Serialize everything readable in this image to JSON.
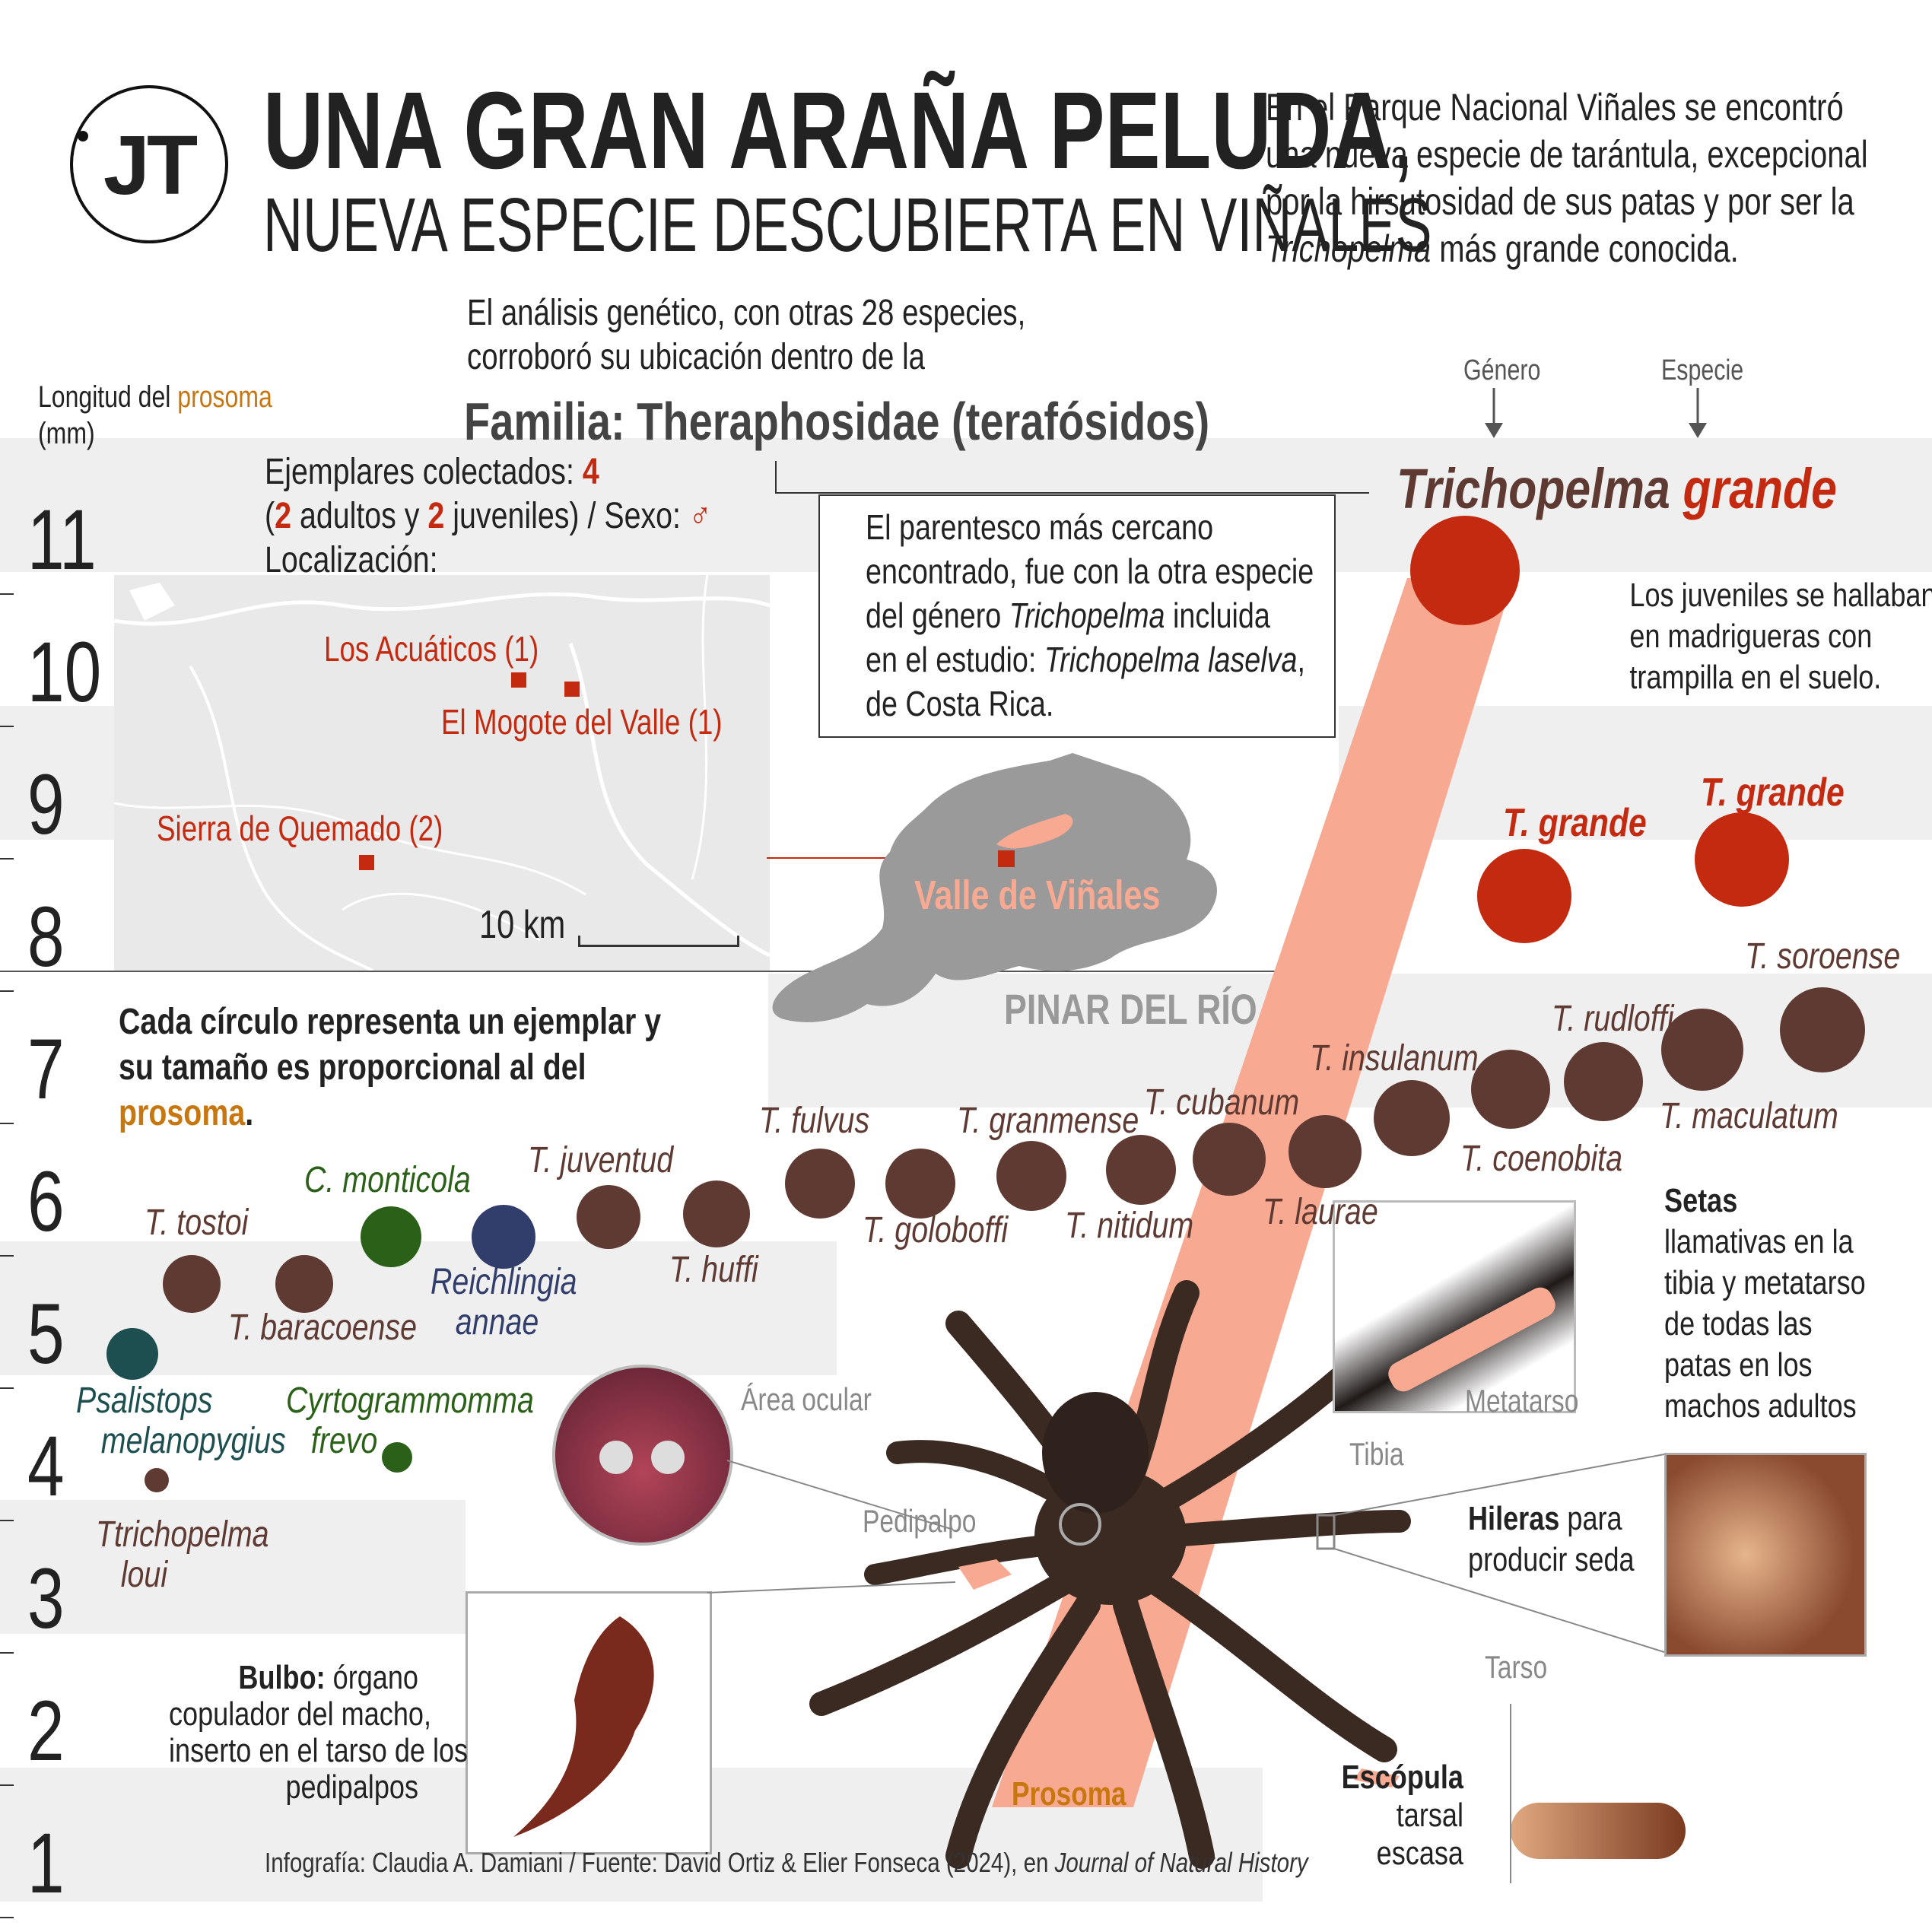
{
  "header": {
    "logo": "JT",
    "title_line1": "UNA GRAN ARAÑA PELUDA",
    "title_comma": ",",
    "title_line2": "NUEVA ESPECIE DESCUBIERTA EN VIÑALES",
    "intro_line1": "En el Parque Nacional Viñales se encontró",
    "intro_line2": "una nueva especie de tarántula, excepcional",
    "intro_line3": "por la hirsutosidad de sus patas y por ser la",
    "intro_line4_italic": "Trichopelma",
    "intro_line4_rest": " más grande conocida."
  },
  "genetic": {
    "line1": "El análisis genético, con otras 28 especies,",
    "line2": "corroboró su ubicación dentro de la",
    "family": "Familia: Theraphosidae (terafósidos)",
    "genero": "Género",
    "especie": "Especie",
    "new_genus": "Trichopelma",
    "new_species": "grande"
  },
  "kinship": {
    "line1": "El parentesco más cercano",
    "line2": "encontrado, fue con la otra especie",
    "line3a": "del género ",
    "line3b": "Trichopelma",
    "line3c": " incluida",
    "line4a": "en el estudio: ",
    "line4b": "Trichopelma laselva",
    "line4c": ",",
    "line5": "de Costa Rica."
  },
  "specimens": {
    "line1a": "Ejemplares colectados: ",
    "count": "4",
    "line2a": "(",
    "adults": "2",
    "line2b": " adultos y ",
    "juveniles": "2",
    "line2c": " juveniles) / Sexo: ",
    "sex_symbol": "♂",
    "line3": "Localización:"
  },
  "map": {
    "loc1": "Los Acuáticos (1)",
    "loc2": "El Mogote del Valle (1)",
    "loc3": "Sierra de Quemado (2)",
    "scale": "10 km",
    "valle": "Valle de Viñales",
    "province": "PINAR DEL RÍO"
  },
  "juveniles_note": {
    "line1": "Los juveniles se hallaban",
    "line2": "en madrigueras con",
    "line3": "trampilla en el suelo."
  },
  "legend_note": {
    "line1": "Cada círculo representa un ejemplar y",
    "line2": "su tamaño es proporcional al del",
    "line3": "prosoma",
    "line3_end": "."
  },
  "axis": {
    "title_a": "Longitud del ",
    "title_b": "prosoma",
    "unit": "(mm)"
  },
  "anatomy": {
    "area_ocular": "Área ocular",
    "pedipalpo": "Pedipalpo",
    "tibia": "Tibia",
    "metatarso": "Metatarso",
    "tarso": "Tarso",
    "prosoma": "Prosoma",
    "setas_title": "Setas",
    "setas_1": "llamativas en la",
    "setas_2": "tibia y metatarso",
    "setas_3": "de todas las",
    "setas_4": "patas en los",
    "setas_5": "machos adultos",
    "hileras_b": "Hileras",
    "hileras_1": " para",
    "hileras_2": "producir seda",
    "bulbo_b": "Bulbo:",
    "bulbo_1": " órgano",
    "bulbo_2": "copulador del macho,",
    "bulbo_3": "inserto en el tarso de los",
    "bulbo_4": "pedipalpos",
    "escopula_b": "Escópula",
    "escopula_1": "tarsal",
    "escopula_2": "escasa"
  },
  "credit": {
    "text": "Infografía: Claudia A. Damiani / Fuente: David Ortiz & Elier Fonseca (2024), en ",
    "journal": "Journal of Natural History"
  },
  "colors": {
    "accent_red": "#c42a10",
    "trichopelma_brown": "#5e3a33",
    "cyrtogrammomma_green": "#2b6018",
    "reichlingia_blue": "#313d6b",
    "psalistops_teal": "#1e4f50",
    "prosoma_orange": "#c8770f",
    "band_salmon": "#f8a992"
  },
  "chart_data": {
    "type": "scatter",
    "title": "",
    "xlabel": "",
    "ylabel": "Longitud del prosoma (mm)",
    "ylim": [
      1,
      11
    ],
    "yticks": [
      1,
      2,
      3,
      4,
      5,
      6,
      7,
      8,
      9,
      10,
      11
    ],
    "size_encoding": "prosoma",
    "points": [
      {
        "label": "Ttrichopelma loui",
        "y": 4.2,
        "color": "#5e3a33"
      },
      {
        "label": "Psalistops melanopygius",
        "y": 4.9,
        "color": "#1e4f50"
      },
      {
        "label": "T. tostoi",
        "y": 5.6,
        "color": "#5e3a33"
      },
      {
        "label": "T. baracoense",
        "y": 5.6,
        "color": "#5e3a33"
      },
      {
        "label": "Cyrtogrammomma frevo",
        "y": 4.3,
        "color": "#2b6018"
      },
      {
        "label": "C. monticola",
        "y": 5.9,
        "color": "#2b6018"
      },
      {
        "label": "Reichlingia annae",
        "y": 5.9,
        "color": "#313d6b"
      },
      {
        "label": "T. juventud",
        "y": 6.0,
        "color": "#5e3a33"
      },
      {
        "label": "T. huffi",
        "y": 6.0,
        "color": "#5e3a33"
      },
      {
        "label": "T. fulvus",
        "y": 6.2,
        "color": "#5e3a33"
      },
      {
        "label": "T. goloboffi",
        "y": 6.2,
        "color": "#5e3a33"
      },
      {
        "label": "T. granmense",
        "y": 6.2,
        "color": "#5e3a33"
      },
      {
        "label": "T. nitidum",
        "y": 6.2,
        "color": "#5e3a33"
      },
      {
        "label": "T. cubanum",
        "y": 6.3,
        "color": "#5e3a33"
      },
      {
        "label": "T. laurae",
        "y": 6.3,
        "color": "#5e3a33"
      },
      {
        "label": "T. insulanum",
        "y": 6.6,
        "color": "#5e3a33"
      },
      {
        "label": "T. coenobita",
        "y": 6.8,
        "color": "#5e3a33"
      },
      {
        "label": "T. rudloffi",
        "y": 6.8,
        "color": "#5e3a33"
      },
      {
        "label": "T. maculatum",
        "y": 7.1,
        "color": "#5e3a33"
      },
      {
        "label": "T. soroense",
        "y": 7.2,
        "color": "#5e3a33"
      },
      {
        "label": "T. grande",
        "y": 8.2,
        "color": "#c42a10"
      },
      {
        "label": "T. grande",
        "y": 8.6,
        "color": "#c42a10"
      },
      {
        "label": "Trichopelma grande",
        "y": 10.6,
        "color": "#c42a10"
      }
    ]
  }
}
